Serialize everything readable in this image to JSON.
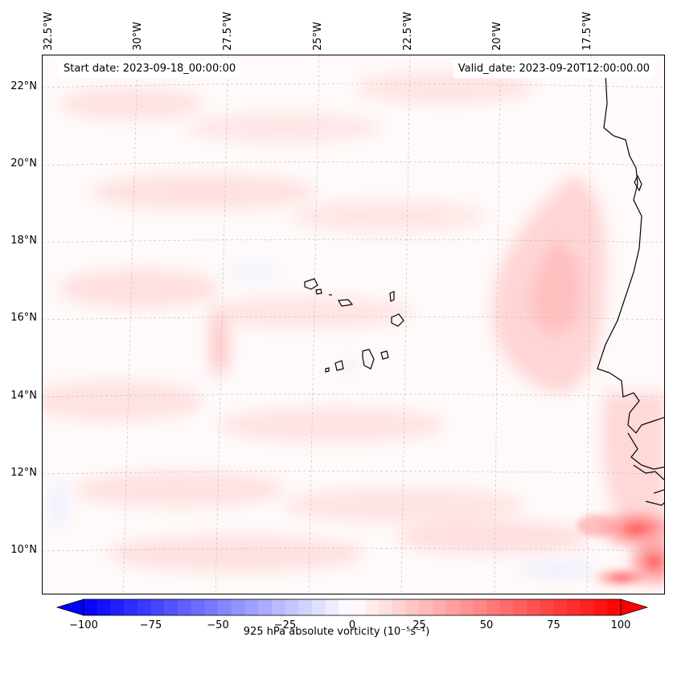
{
  "map": {
    "variable": "925 hPa absolute vorticity",
    "units": "(10⁻⁵s⁻¹)",
    "start_date_label": "Start date: 2023-09-18_00:00:00",
    "valid_date_label": "Valid_date: 2023-09-20T12:00:00.00",
    "lon_labels": [
      "32.5°W",
      "30°W",
      "27.5°W",
      "25°W",
      "22.5°W",
      "20°W",
      "17.5°W"
    ],
    "lat_labels": [
      "22°N",
      "20°N",
      "18°N",
      "16°N",
      "14°N",
      "12°N",
      "10°N"
    ]
  },
  "colorbar": {
    "min": -100,
    "max": 100,
    "ticks": [
      "−100",
      "−75",
      "−50",
      "−25",
      "0",
      "25",
      "50",
      "75",
      "100"
    ],
    "label": "925 hPa absolute vorticity (10⁻⁵s⁻¹)",
    "low_color": "#0000ff",
    "high_color": "#ff0000"
  }
}
